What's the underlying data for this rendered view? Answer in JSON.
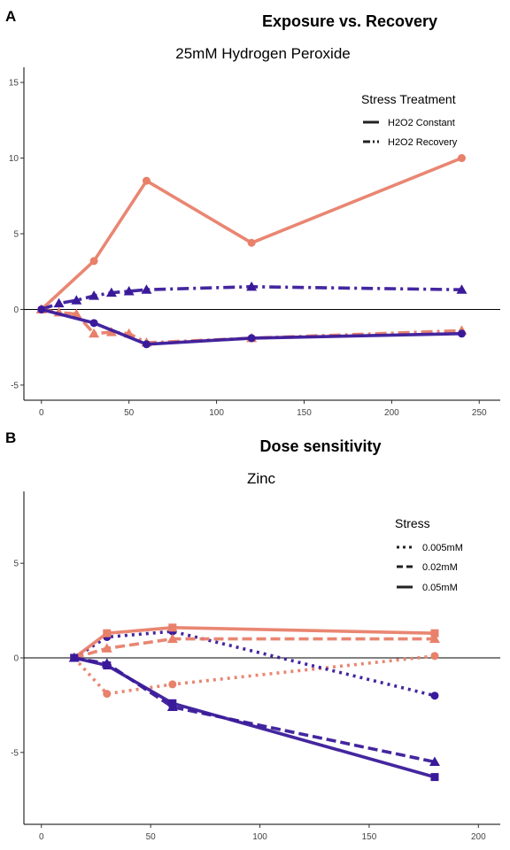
{
  "panels": [
    {
      "label": "A",
      "figure_title": "Exposure vs. Recovery",
      "legend": {
        "title": "Stress Treatment",
        "items": [
          {
            "label": "H2O2 Constant",
            "dash": "solid"
          },
          {
            "label": "H2O2 Recovery",
            "dash": "dashdot"
          }
        ]
      }
    },
    {
      "label": "B",
      "figure_title": "Dose sensitivity",
      "legend": {
        "title": "Stress",
        "items": [
          {
            "label": "0.005mM",
            "dash": "dotted"
          },
          {
            "label": "0.02mM",
            "dash": "dashed"
          },
          {
            "label": "0.05mM",
            "dash": "solid"
          }
        ]
      }
    }
  ],
  "colors": {
    "orange": "#E8806A",
    "purple": "#3A1A9A"
  },
  "chart_data": [
    {
      "type": "line",
      "title": "25mM Hydrogen Peroxide",
      "xlim": [
        -10,
        262
      ],
      "ylim": [
        -6,
        16
      ],
      "xticks": [
        0,
        50,
        100,
        150,
        200,
        250
      ],
      "yticks": [
        -5,
        0,
        5,
        10,
        15
      ],
      "zero_line": true,
      "grid": false,
      "legend_position": "top-right",
      "series": [
        {
          "color": "orange",
          "dash": "solid",
          "marker": "circle",
          "x": [
            0,
            30,
            60,
            120,
            240
          ],
          "y": [
            0,
            3.2,
            8.5,
            4.4,
            10.0
          ]
        },
        {
          "color": "purple",
          "dash": "dashdot",
          "marker": "triangle",
          "x": [
            0,
            10,
            20,
            30,
            40,
            50,
            60,
            120,
            240
          ],
          "y": [
            0,
            0.4,
            0.6,
            0.9,
            1.1,
            1.2,
            1.3,
            1.5,
            1.3
          ]
        },
        {
          "color": "orange",
          "dash": "dashdot",
          "marker": "triangle",
          "x": [
            0,
            10,
            20,
            30,
            40,
            50,
            60,
            120,
            240
          ],
          "y": [
            0,
            -0.2,
            -0.3,
            -1.6,
            -1.5,
            -1.6,
            -2.2,
            -1.9,
            -1.4
          ]
        },
        {
          "color": "purple",
          "dash": "solid",
          "marker": "circle",
          "x": [
            0,
            30,
            60,
            120,
            240
          ],
          "y": [
            0,
            -0.9,
            -2.3,
            -1.9,
            -1.6
          ]
        }
      ]
    },
    {
      "type": "line",
      "title": "Zinc",
      "xlim": [
        -8,
        210
      ],
      "ylim": [
        -8.8,
        8.8
      ],
      "xticks": [
        0,
        50,
        100,
        150,
        200
      ],
      "yticks": [
        -5,
        0,
        5
      ],
      "zero_line": true,
      "grid": false,
      "legend_position": "top-right",
      "series": [
        {
          "color": "orange",
          "dash": "dotted",
          "marker": "circle",
          "x": [
            15,
            30,
            60,
            180
          ],
          "y": [
            0,
            -1.9,
            -1.4,
            0.1
          ]
        },
        {
          "color": "purple",
          "dash": "dotted",
          "marker": "circle",
          "x": [
            15,
            30,
            60,
            180
          ],
          "y": [
            0,
            1.1,
            1.4,
            -2.0
          ]
        },
        {
          "color": "orange",
          "dash": "dashed",
          "marker": "triangle",
          "x": [
            15,
            30,
            60,
            180
          ],
          "y": [
            0,
            0.5,
            1.0,
            1.0
          ]
        },
        {
          "color": "orange",
          "dash": "solid",
          "marker": "square",
          "x": [
            15,
            30,
            60,
            180
          ],
          "y": [
            0,
            1.3,
            1.6,
            1.3
          ]
        },
        {
          "color": "purple",
          "dash": "dashed",
          "marker": "triangle",
          "x": [
            15,
            30,
            60,
            180
          ],
          "y": [
            0,
            -0.3,
            -2.6,
            -5.5
          ]
        },
        {
          "color": "purple",
          "dash": "solid",
          "marker": "square",
          "x": [
            15,
            30,
            60,
            180
          ],
          "y": [
            0,
            -0.4,
            -2.4,
            -6.3
          ]
        }
      ]
    }
  ]
}
